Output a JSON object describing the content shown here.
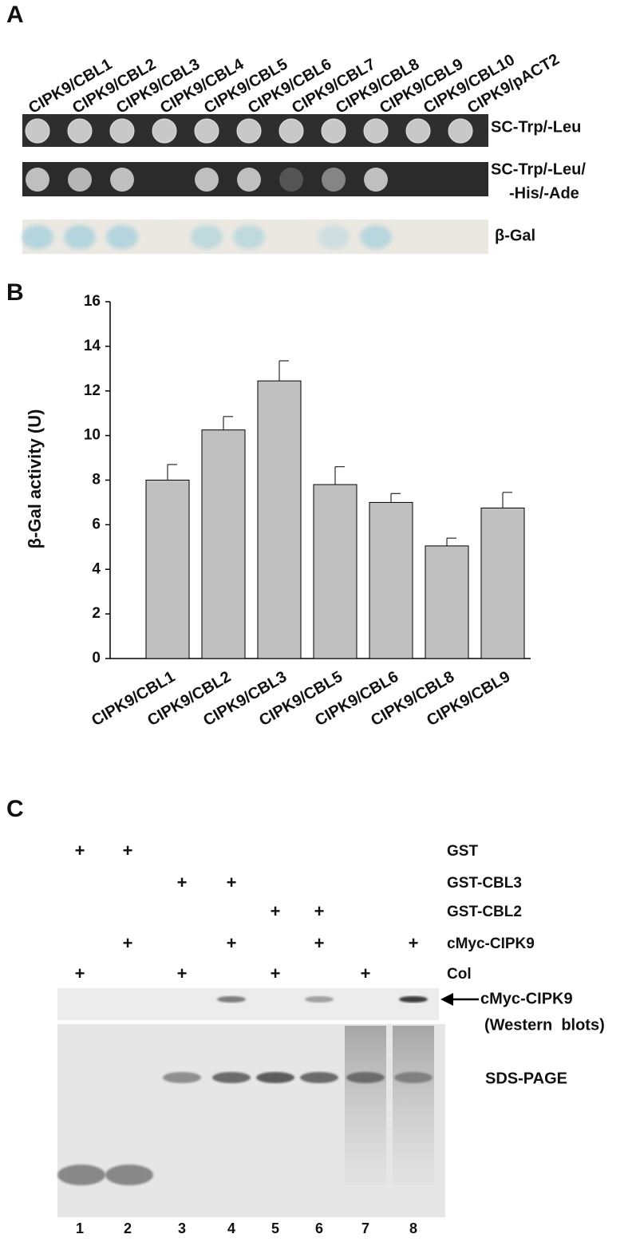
{
  "panels": {
    "a": "A",
    "b": "B",
    "c": "C"
  },
  "panel_a": {
    "columns": [
      "CIPK9/CBL1",
      "CIPK9/CBL2",
      "CIPK9/CBL3",
      "CIPK9/CBL4",
      "CIPK9/CBL5",
      "CIPK9/CBL6",
      "CIPK9/CBL7",
      "CIPK9/CBL8",
      "CIPK9/CBL9",
      "CIPK9/CBL10",
      "CIPK9/pACT2"
    ],
    "row1": "SC-Trp/-Leu",
    "row2": [
      "SC-Trp/-Leu/",
      "-His/-Ade"
    ],
    "row3": "β-Gal"
  },
  "chart_data": {
    "type": "bar",
    "ylabel": "β-Gal activity (U)",
    "categories": [
      "CIPK9/CBL1",
      "CIPK9/CBL2",
      "CIPK9/CBL3",
      "CIPK9/CBL5",
      "CIPK9/CBL6",
      "CIPK9/CBL8",
      "CIPK9/CBL9"
    ],
    "values": [
      8.0,
      10.25,
      12.45,
      7.8,
      7.0,
      5.05,
      6.75
    ],
    "errors": [
      0.7,
      0.6,
      0.9,
      0.8,
      0.4,
      0.35,
      0.7
    ],
    "color": "#c0c0c0",
    "ylim": [
      0,
      16
    ],
    "yticks": [
      0,
      2,
      4,
      6,
      8,
      10,
      12,
      14,
      16
    ]
  },
  "panel_c": {
    "rows": [
      {
        "label": "GST",
        "cells": [
          "+",
          "+",
          null,
          null,
          null,
          null,
          null,
          null
        ]
      },
      {
        "label": "GST-CBL3",
        "cells": [
          null,
          null,
          "+",
          "+",
          null,
          null,
          null,
          null
        ]
      },
      {
        "label": "GST-CBL2",
        "cells": [
          null,
          null,
          null,
          null,
          "+",
          "+",
          null,
          null
        ]
      },
      {
        "label": "cMyc-CIPK9",
        "cells": [
          null,
          "+",
          null,
          "+",
          null,
          "+",
          null,
          "+"
        ]
      },
      {
        "label": "Col",
        "cells": [
          "+",
          null,
          "+",
          null,
          "+",
          null,
          "+",
          null
        ]
      }
    ],
    "western_label": "cMyc-CIPK9",
    "western_note": "(Western  blots)",
    "gel_label": "SDS-PAGE",
    "lanes": [
      1,
      2,
      3,
      4,
      5,
      6,
      7,
      8
    ]
  }
}
